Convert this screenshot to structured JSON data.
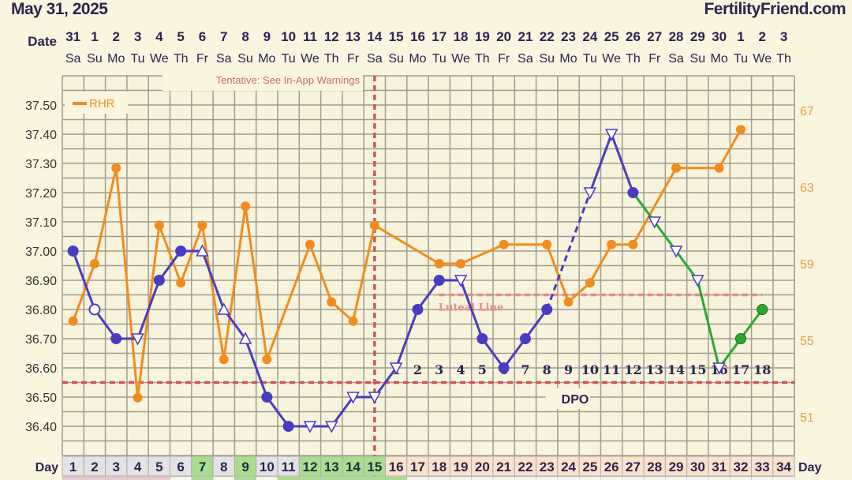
{
  "header": {
    "date": "May 31, 2025",
    "brand": "FertilityFriend.com"
  },
  "labels": {
    "date_row": "Date",
    "day_row": "Day",
    "tentative": "Tentative: See In-App Warnings",
    "luteal": "Luteal Line",
    "dpo": "DPO",
    "legend_rhr": "RHR"
  },
  "colors": {
    "temp": "#4a3cc0",
    "post": "#2aa830",
    "rhr": "#f08c1e",
    "line": "#c85a5a",
    "luteal": "#e88a8a",
    "grid": "#a09c90",
    "bg": "#f7f3dc"
  },
  "chart_data": {
    "type": "line",
    "title": "",
    "x_days": [
      1,
      2,
      3,
      4,
      5,
      6,
      7,
      8,
      9,
      10,
      11,
      12,
      13,
      14,
      15,
      16,
      17,
      18,
      19,
      20,
      21,
      22,
      23,
      24,
      25,
      26,
      27,
      28,
      29,
      30,
      31,
      32,
      33,
      34
    ],
    "dates": [
      "31",
      "1",
      "2",
      "3",
      "4",
      "5",
      "6",
      "7",
      "8",
      "9",
      "10",
      "11",
      "12",
      "13",
      "14",
      "15",
      "16",
      "17",
      "18",
      "19",
      "20",
      "21",
      "22",
      "23",
      "24",
      "25",
      "26",
      "27",
      "28",
      "29",
      "30",
      "1",
      "2",
      "3"
    ],
    "weekdays": [
      "Sa",
      "Su",
      "Mo",
      "Tu",
      "We",
      "Th",
      "Fr",
      "Sa",
      "Su",
      "Mo",
      "Tu",
      "We",
      "Th",
      "Fr",
      "Sa",
      "Su",
      "Mo",
      "Tu",
      "We",
      "Th",
      "Fr",
      "Sa",
      "Su",
      "Mo",
      "Tu",
      "We",
      "Th",
      "Fr",
      "Sa",
      "Su",
      "Mo",
      "Tu",
      "We",
      "Th"
    ],
    "y_left": {
      "min": 36.3,
      "max": 37.6,
      "ticks": [
        "37.50",
        "37.40",
        "37.30",
        "37.20",
        "37.10",
        "37.00",
        "36.90",
        "36.80",
        "36.70",
        "36.60",
        "36.50",
        "36.40"
      ]
    },
    "y_right": {
      "label": "RHR",
      "ticks": [
        "67",
        "63",
        "59",
        "55",
        "51"
      ]
    },
    "series": [
      {
        "name": "Temperature",
        "values": [
          37.0,
          36.8,
          36.7,
          36.7,
          36.9,
          37.0,
          37.0,
          36.8,
          36.7,
          36.5,
          36.4,
          36.4,
          36.4,
          36.5,
          36.5,
          36.6,
          36.8,
          36.9,
          36.9,
          36.7,
          36.6,
          36.7,
          36.8,
          null,
          37.2,
          37.4,
          37.2,
          37.1,
          37.0,
          36.9,
          36.6,
          36.7,
          36.8,
          null
        ],
        "markers": [
          "filled",
          "open",
          "filled",
          "tri-down",
          "filled",
          "filled",
          "tri-up",
          "tri-up",
          "tri-up",
          "filled",
          "filled",
          "tri-down",
          "tri-down",
          "tri-down",
          "tri-down",
          "tri-down",
          "filled",
          "filled",
          "tri-down",
          "filled",
          "filled",
          "filled",
          "filled",
          null,
          "tri-down",
          "tri-down",
          "filled",
          "tri-down",
          "tri-down",
          "tri-down",
          "tri-down",
          "green",
          "green",
          null
        ]
      },
      {
        "name": "RHR",
        "values": [
          56,
          59,
          64,
          52,
          61,
          58,
          61,
          54,
          62,
          54,
          null,
          60,
          57,
          56,
          61,
          null,
          null,
          59,
          59,
          null,
          60,
          null,
          60,
          57,
          58,
          60,
          60,
          null,
          64,
          null,
          64,
          66,
          null,
          null
        ]
      }
    ],
    "coverline": 36.55,
    "luteal_line": {
      "value": 36.85,
      "from_day": 18,
      "to_day": 33
    },
    "ovulation_day": 15,
    "dpo_labels": [
      "1",
      "2",
      "3",
      "4",
      "5",
      "6",
      "7",
      "8",
      "9",
      "10",
      "11",
      "12",
      "13",
      "14",
      "15",
      "16",
      "17",
      "18"
    ],
    "day_cell_status": [
      "g",
      "g",
      "g",
      "g",
      "g",
      "g",
      "G",
      "g",
      "G",
      "g",
      "g",
      "G",
      "G",
      "G",
      "G",
      "p",
      "p",
      "p",
      "p",
      "p",
      "p",
      "p",
      "p",
      "p",
      "p",
      "p",
      "p",
      "p",
      "p",
      "p",
      "p",
      "p",
      "p",
      "p"
    ],
    "bottom_strip": [
      "r",
      "r",
      "r",
      "r",
      "r",
      "w",
      "G",
      "w",
      "G",
      "w",
      "G",
      "G",
      "G",
      "G",
      "G",
      "G",
      "w",
      "w",
      "w",
      "w",
      "w",
      "w",
      "w",
      "w",
      "w",
      "w",
      "w",
      "w",
      "w",
      "w",
      "w",
      "w",
      "w",
      "w"
    ]
  }
}
